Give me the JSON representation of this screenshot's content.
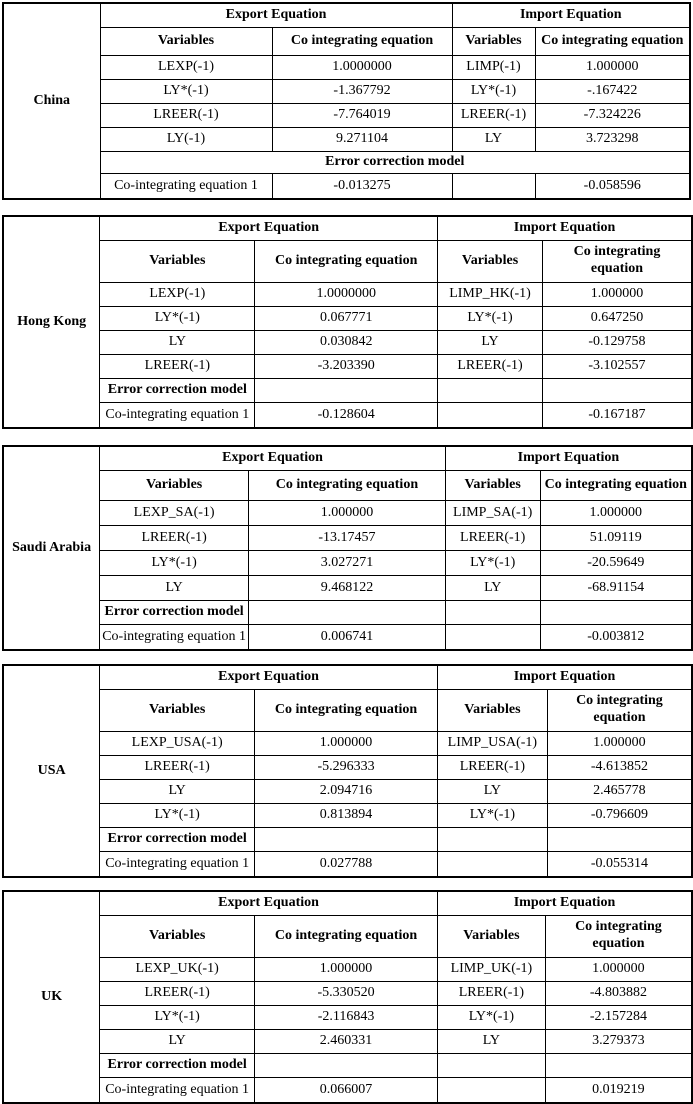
{
  "page": {
    "background_color": "#ffffff",
    "text_color": "#000000",
    "border_color": "#000000"
  },
  "labels": {
    "export_equation": "Export Equation",
    "import_equation": "Import Equation",
    "variables": "Variables",
    "co_integrating": "Co integrating equation",
    "error_correction": "Error correction model",
    "co_integrating_1": "Co-integrating equation 1"
  },
  "tables": [
    {
      "country": "China",
      "export_rows": [
        {
          "variable": "LEXP(-1)",
          "value": "1.0000000"
        },
        {
          "variable": "LY*(-1)",
          "value": "-1.367792"
        },
        {
          "variable": "LREER(-1)",
          "value": "-7.764019"
        },
        {
          "variable": "LY(-1)",
          "value": "9.271104"
        }
      ],
      "import_rows": [
        {
          "variable": "LIMP(-1)",
          "value": "1.000000"
        },
        {
          "variable": "LY*(-1)",
          "value": "-.167422"
        },
        {
          "variable": "LREER(-1)",
          "value": "-7.324226"
        },
        {
          "variable": "LY",
          "value": "3.723298"
        }
      ],
      "ecm_export": "-0.013275",
      "ecm_import": "-0.058596"
    },
    {
      "country": "Hong Kong",
      "export_rows": [
        {
          "variable": "LEXP(-1)",
          "value": "1.0000000"
        },
        {
          "variable": "LY*(-1)",
          "value": "0.067771"
        },
        {
          "variable": "LY",
          "value": "0.030842"
        },
        {
          "variable": "LREER(-1)",
          "value": "-3.203390"
        }
      ],
      "import_rows": [
        {
          "variable": "LIMP_HK(-1)",
          "value": "1.000000"
        },
        {
          "variable": "LY*(-1)",
          "value": "0.647250"
        },
        {
          "variable": "LY",
          "value": "-0.129758"
        },
        {
          "variable": "LREER(-1)",
          "value": "-3.102557"
        }
      ],
      "ecm_export": "-0.128604",
      "ecm_import": "-0.167187"
    },
    {
      "country": "Saudi Arabia",
      "export_rows": [
        {
          "variable": "LEXP_SA(-1)",
          "value": "1.000000"
        },
        {
          "variable": "LREER(-1)",
          "value": "-13.17457"
        },
        {
          "variable": "LY*(-1)",
          "value": "3.027271"
        },
        {
          "variable": "LY",
          "value": "9.468122"
        }
      ],
      "import_rows": [
        {
          "variable": "LIMP_SA(-1)",
          "value": "1.000000"
        },
        {
          "variable": "LREER(-1)",
          "value": "51.09119"
        },
        {
          "variable": "LY*(-1)",
          "value": "-20.59649"
        },
        {
          "variable": "LY",
          "value": "-68.91154"
        }
      ],
      "ecm_export": "0.006741",
      "ecm_import": "-0.003812"
    },
    {
      "country": "USA",
      "export_rows": [
        {
          "variable": "LEXP_USA(-1)",
          "value": "1.000000"
        },
        {
          "variable": "LREER(-1)",
          "value": "-5.296333"
        },
        {
          "variable": "LY",
          "value": "2.094716"
        },
        {
          "variable": "LY*(-1)",
          "value": "0.813894"
        }
      ],
      "import_rows": [
        {
          "variable": "LIMP_USA(-1)",
          "value": "1.000000"
        },
        {
          "variable": "LREER(-1)",
          "value": "-4.613852"
        },
        {
          "variable": "LY",
          "value": "2.465778"
        },
        {
          "variable": "LY*(-1)",
          "value": "-0.796609"
        }
      ],
      "ecm_export": "0.027788",
      "ecm_import": "-0.055314"
    },
    {
      "country": "UK",
      "export_rows": [
        {
          "variable": "LEXP_UK(-1)",
          "value": "1.000000"
        },
        {
          "variable": "LREER(-1)",
          "value": "-5.330520"
        },
        {
          "variable": "LY*(-1)",
          "value": "-2.116843"
        },
        {
          "variable": "LY",
          "value": "2.460331"
        }
      ],
      "import_rows": [
        {
          "variable": "LIMP_UK(-1)",
          "value": "1.000000"
        },
        {
          "variable": "LREER(-1)",
          "value": "-4.803882"
        },
        {
          "variable": "LY*(-1)",
          "value": "-2.157284"
        },
        {
          "variable": "LY",
          "value": "3.279373"
        }
      ],
      "ecm_export": "0.066007",
      "ecm_import": "0.019219"
    }
  ]
}
